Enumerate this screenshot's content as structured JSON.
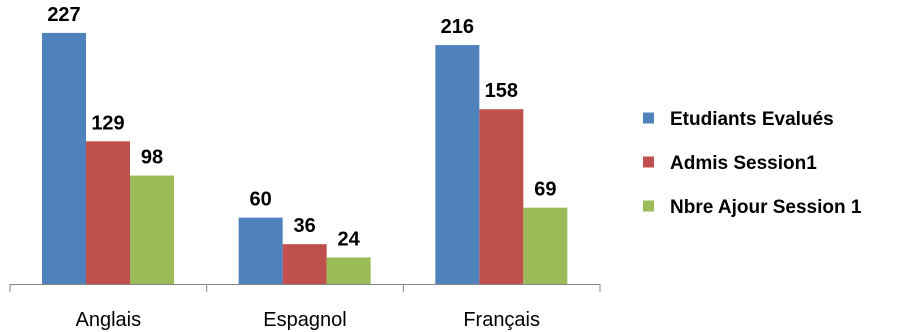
{
  "chart_data": {
    "type": "bar",
    "categories": [
      "Anglais",
      "Espagnol",
      "Français"
    ],
    "series": [
      {
        "name": "Etudiants  Evalués",
        "color": "#4F81BD",
        "values": [
          227,
          60,
          216
        ]
      },
      {
        "name": "Admis Session1",
        "color": "#C0504D",
        "values": [
          129,
          36,
          158
        ]
      },
      {
        "name": "Nbre Ajour Session 1",
        "color": "#9BBB59",
        "values": [
          98,
          24,
          69
        ]
      }
    ],
    "ylim": [
      0,
      245
    ],
    "grid": false,
    "legend_position": "right"
  }
}
